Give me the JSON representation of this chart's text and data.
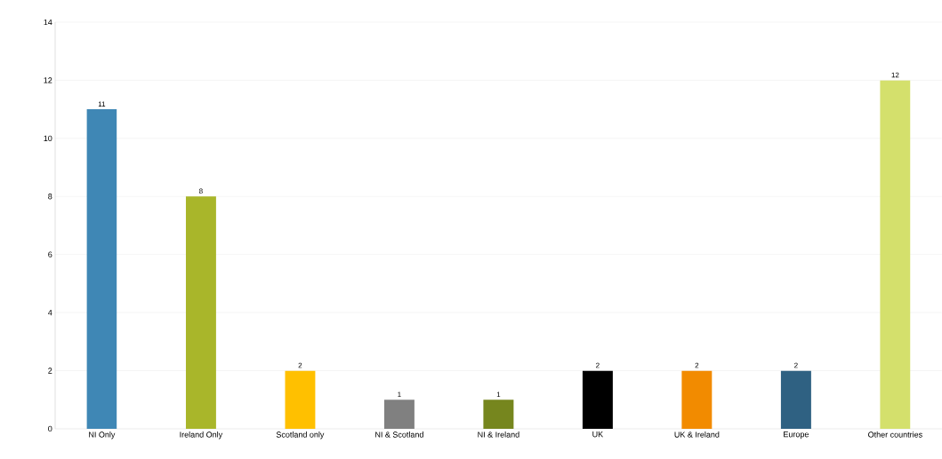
{
  "chart_data": {
    "type": "bar",
    "categories": [
      "NI Only",
      "Ireland Only",
      "Scotland only",
      "NI & Scotland",
      "NI & Ireland",
      "UK",
      "UK & Ireland",
      "Europe",
      "Other countries"
    ],
    "values": [
      11,
      8,
      2,
      1,
      1,
      2,
      2,
      2,
      12
    ],
    "value_labels": [
      "11",
      "8",
      "2",
      "1",
      "1",
      "2",
      "2",
      "2",
      "12"
    ],
    "colors": [
      "#3f87b5",
      "#a9b62a",
      "#ffc000",
      "#808080",
      "#76861e",
      "#000000",
      "#f28b00",
      "#2f6182",
      "#d4e06c"
    ],
    "ylim": [
      0,
      14
    ],
    "yticks": [
      0,
      2,
      4,
      6,
      8,
      10,
      12,
      14
    ],
    "grid": "y"
  }
}
